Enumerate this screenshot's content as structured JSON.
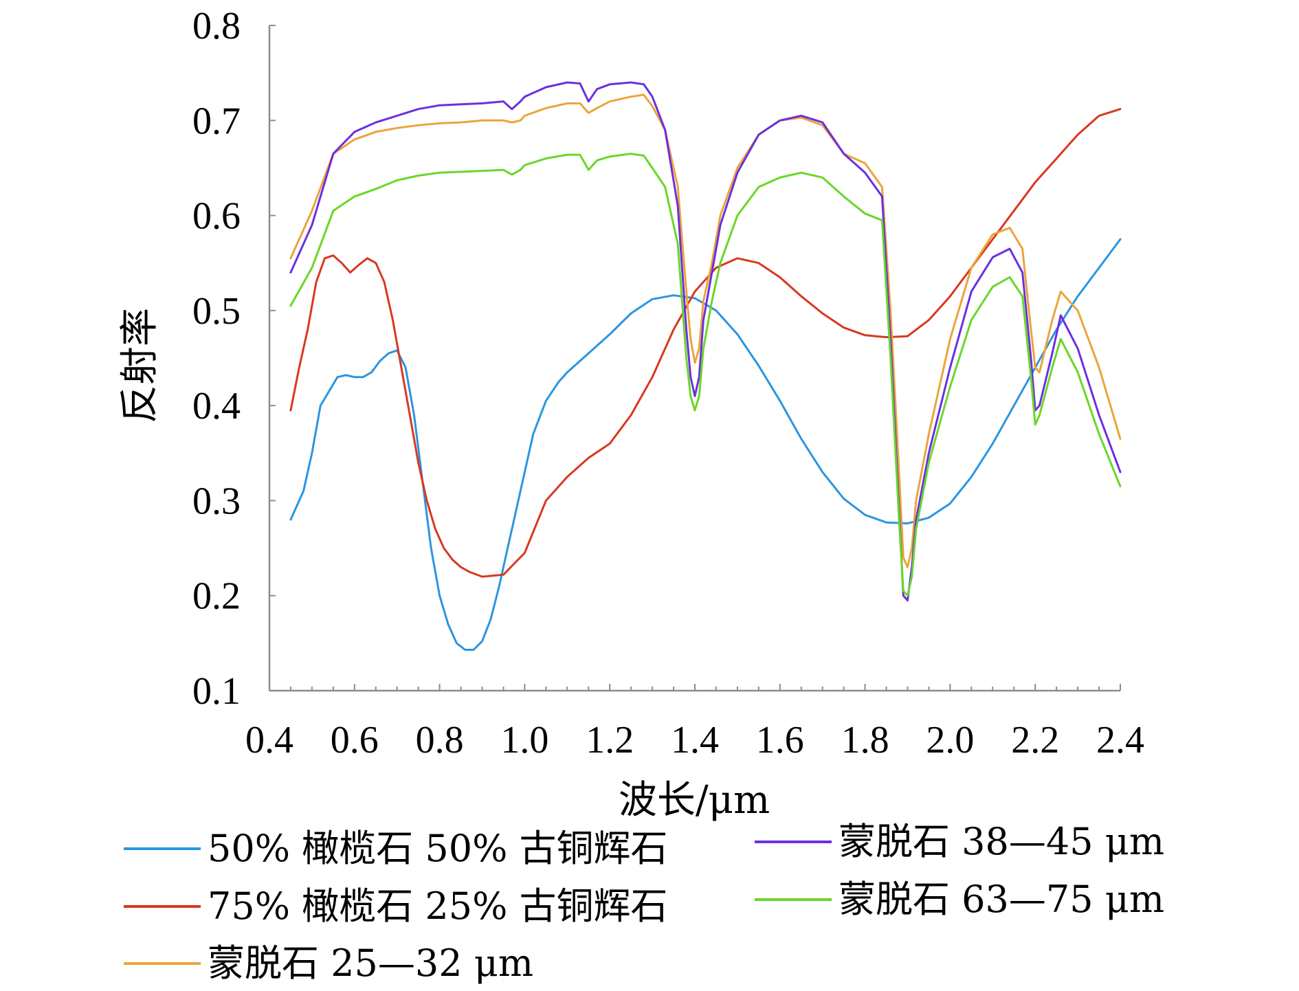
{
  "chart_data": {
    "type": "line",
    "xlabel": "波长/μm",
    "ylabel": "反射率",
    "xlim": [
      0.4,
      2.4
    ],
    "ylim": [
      0.1,
      0.8
    ],
    "x_ticks": [
      "0.4",
      "0.6",
      "0.8",
      "1.0",
      "1.2",
      "1.4",
      "1.6",
      "1.8",
      "2.0",
      "2.2",
      "2.4"
    ],
    "y_ticks": [
      "0.1",
      "0.2",
      "0.3",
      "0.4",
      "0.5",
      "0.6",
      "0.7",
      "0.8"
    ],
    "grid": false,
    "legend_position": "bottom",
    "series": [
      {
        "name": "50% 橄榄石 50% 古铜辉石",
        "color": "#2b95e0",
        "x": [
          0.45,
          0.48,
          0.5,
          0.52,
          0.54,
          0.56,
          0.58,
          0.6,
          0.62,
          0.64,
          0.66,
          0.68,
          0.7,
          0.72,
          0.74,
          0.76,
          0.78,
          0.8,
          0.82,
          0.84,
          0.86,
          0.88,
          0.9,
          0.92,
          0.94,
          0.96,
          0.98,
          1.0,
          1.02,
          1.05,
          1.08,
          1.1,
          1.15,
          1.2,
          1.25,
          1.3,
          1.35,
          1.4,
          1.45,
          1.5,
          1.55,
          1.6,
          1.65,
          1.7,
          1.75,
          1.8,
          1.85,
          1.9,
          1.95,
          2.0,
          2.05,
          2.1,
          2.15,
          2.2,
          2.25,
          2.3,
          2.35,
          2.4
        ],
        "y": [
          0.28,
          0.31,
          0.35,
          0.4,
          0.415,
          0.43,
          0.432,
          0.43,
          0.43,
          0.435,
          0.447,
          0.455,
          0.458,
          0.44,
          0.39,
          0.32,
          0.25,
          0.2,
          0.17,
          0.15,
          0.143,
          0.143,
          0.152,
          0.175,
          0.21,
          0.25,
          0.29,
          0.33,
          0.37,
          0.405,
          0.425,
          0.435,
          0.455,
          0.475,
          0.497,
          0.512,
          0.516,
          0.513,
          0.5,
          0.475,
          0.442,
          0.405,
          0.365,
          0.33,
          0.302,
          0.285,
          0.277,
          0.276,
          0.282,
          0.297,
          0.325,
          0.36,
          0.4,
          0.44,
          0.48,
          0.515,
          0.545,
          0.575
        ]
      },
      {
        "name": "75% 橄榄石 25% 古铜辉石",
        "color": "#d8381f",
        "x": [
          0.45,
          0.47,
          0.49,
          0.51,
          0.53,
          0.55,
          0.57,
          0.59,
          0.61,
          0.63,
          0.65,
          0.67,
          0.69,
          0.71,
          0.73,
          0.75,
          0.77,
          0.79,
          0.81,
          0.83,
          0.85,
          0.87,
          0.9,
          0.95,
          1.0,
          1.05,
          1.1,
          1.15,
          1.2,
          1.25,
          1.3,
          1.35,
          1.4,
          1.45,
          1.5,
          1.55,
          1.6,
          1.65,
          1.7,
          1.75,
          1.8,
          1.85,
          1.9,
          1.95,
          2.0,
          2.05,
          2.1,
          2.15,
          2.2,
          2.25,
          2.3,
          2.35,
          2.4
        ],
        "y": [
          0.395,
          0.44,
          0.48,
          0.53,
          0.555,
          0.558,
          0.55,
          0.54,
          0.548,
          0.555,
          0.55,
          0.53,
          0.49,
          0.44,
          0.39,
          0.34,
          0.3,
          0.27,
          0.25,
          0.238,
          0.23,
          0.225,
          0.22,
          0.222,
          0.245,
          0.3,
          0.325,
          0.345,
          0.36,
          0.39,
          0.43,
          0.48,
          0.52,
          0.545,
          0.555,
          0.55,
          0.535,
          0.515,
          0.497,
          0.482,
          0.474,
          0.472,
          0.473,
          0.49,
          0.515,
          0.545,
          0.575,
          0.605,
          0.635,
          0.66,
          0.685,
          0.705,
          0.712
        ]
      },
      {
        "name": "蒙脱石 25—32 μm",
        "color": "#eba43a",
        "x": [
          0.45,
          0.5,
          0.55,
          0.6,
          0.65,
          0.7,
          0.75,
          0.8,
          0.85,
          0.9,
          0.95,
          0.97,
          0.99,
          1.0,
          1.05,
          1.1,
          1.13,
          1.15,
          1.17,
          1.2,
          1.25,
          1.28,
          1.3,
          1.33,
          1.36,
          1.38,
          1.39,
          1.4,
          1.41,
          1.42,
          1.44,
          1.46,
          1.5,
          1.55,
          1.6,
          1.65,
          1.7,
          1.75,
          1.8,
          1.84,
          1.86,
          1.88,
          1.89,
          1.9,
          1.91,
          1.92,
          1.95,
          2.0,
          2.05,
          2.1,
          2.14,
          2.17,
          2.19,
          2.2,
          2.21,
          2.24,
          2.26,
          2.3,
          2.35,
          2.4
        ],
        "y": [
          0.555,
          0.605,
          0.665,
          0.68,
          0.688,
          0.692,
          0.695,
          0.697,
          0.698,
          0.7,
          0.7,
          0.698,
          0.7,
          0.705,
          0.713,
          0.718,
          0.718,
          0.708,
          0.713,
          0.72,
          0.725,
          0.727,
          0.715,
          0.69,
          0.63,
          0.52,
          0.47,
          0.445,
          0.46,
          0.51,
          0.55,
          0.6,
          0.65,
          0.685,
          0.7,
          0.703,
          0.695,
          0.665,
          0.655,
          0.63,
          0.5,
          0.33,
          0.24,
          0.23,
          0.25,
          0.3,
          0.37,
          0.47,
          0.545,
          0.58,
          0.587,
          0.565,
          0.48,
          0.44,
          0.435,
          0.49,
          0.52,
          0.5,
          0.44,
          0.365
        ]
      },
      {
        "name": "蒙脱石 38—45 μm",
        "color": "#6b2fe0",
        "x": [
          0.45,
          0.5,
          0.55,
          0.6,
          0.65,
          0.7,
          0.75,
          0.8,
          0.85,
          0.9,
          0.95,
          0.97,
          0.99,
          1.0,
          1.05,
          1.1,
          1.13,
          1.15,
          1.17,
          1.2,
          1.25,
          1.28,
          1.3,
          1.33,
          1.36,
          1.38,
          1.39,
          1.4,
          1.41,
          1.42,
          1.44,
          1.46,
          1.5,
          1.55,
          1.6,
          1.65,
          1.7,
          1.75,
          1.8,
          1.84,
          1.86,
          1.88,
          1.89,
          1.9,
          1.91,
          1.92,
          1.95,
          2.0,
          2.05,
          2.1,
          2.14,
          2.17,
          2.19,
          2.2,
          2.21,
          2.24,
          2.26,
          2.3,
          2.35,
          2.4
        ],
        "y": [
          0.54,
          0.59,
          0.665,
          0.688,
          0.698,
          0.705,
          0.712,
          0.716,
          0.717,
          0.718,
          0.72,
          0.712,
          0.72,
          0.725,
          0.735,
          0.74,
          0.739,
          0.72,
          0.733,
          0.738,
          0.74,
          0.738,
          0.725,
          0.69,
          0.61,
          0.48,
          0.43,
          0.41,
          0.43,
          0.49,
          0.54,
          0.59,
          0.645,
          0.685,
          0.7,
          0.705,
          0.698,
          0.665,
          0.645,
          0.62,
          0.47,
          0.29,
          0.2,
          0.195,
          0.23,
          0.28,
          0.35,
          0.44,
          0.52,
          0.556,
          0.565,
          0.54,
          0.45,
          0.395,
          0.4,
          0.455,
          0.495,
          0.46,
          0.39,
          0.33
        ]
      },
      {
        "name": "蒙脱石 63—75 μm",
        "color": "#6ad62a",
        "x": [
          0.45,
          0.5,
          0.55,
          0.6,
          0.65,
          0.7,
          0.75,
          0.8,
          0.85,
          0.9,
          0.95,
          0.97,
          0.99,
          1.0,
          1.05,
          1.1,
          1.13,
          1.15,
          1.17,
          1.2,
          1.25,
          1.28,
          1.3,
          1.33,
          1.36,
          1.38,
          1.39,
          1.4,
          1.41,
          1.42,
          1.44,
          1.46,
          1.5,
          1.55,
          1.6,
          1.65,
          1.7,
          1.75,
          1.8,
          1.84,
          1.86,
          1.88,
          1.89,
          1.9,
          1.91,
          1.92,
          1.95,
          2.0,
          2.05,
          2.1,
          2.14,
          2.17,
          2.19,
          2.2,
          2.21,
          2.24,
          2.26,
          2.3,
          2.35,
          2.4
        ],
        "y": [
          0.505,
          0.545,
          0.605,
          0.62,
          0.628,
          0.637,
          0.642,
          0.645,
          0.646,
          0.647,
          0.648,
          0.643,
          0.648,
          0.653,
          0.66,
          0.664,
          0.664,
          0.648,
          0.658,
          0.662,
          0.665,
          0.663,
          0.65,
          0.63,
          0.57,
          0.45,
          0.41,
          0.395,
          0.41,
          0.46,
          0.51,
          0.55,
          0.6,
          0.63,
          0.64,
          0.645,
          0.64,
          0.62,
          0.602,
          0.595,
          0.45,
          0.28,
          0.205,
          0.2,
          0.22,
          0.27,
          0.34,
          0.42,
          0.49,
          0.525,
          0.535,
          0.515,
          0.43,
          0.38,
          0.39,
          0.44,
          0.47,
          0.435,
          0.37,
          0.315
        ]
      }
    ]
  }
}
